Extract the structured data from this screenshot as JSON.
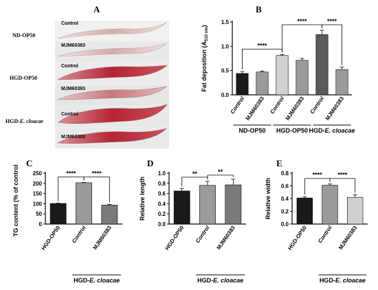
{
  "panels": {
    "a": {
      "letter": "A",
      "groups": [
        {
          "name": "ND-OP50",
          "rows": [
            "Control",
            "MJM60383"
          ]
        },
        {
          "name": "HGD-OP50",
          "rows": [
            "Control",
            "MJM60383"
          ]
        },
        {
          "name": "HGD-E. cloacae",
          "name_prefix": "HGD-",
          "name_species": "E. cloacae",
          "rows": [
            "Control",
            "MJM60383"
          ]
        }
      ],
      "stain_colors": {
        "light": "#e9d3d3",
        "medium": "#c98a8d",
        "dark": "#b8303c"
      }
    },
    "b": {
      "letter": "B"
    },
    "c": {
      "letter": "C"
    },
    "d": {
      "letter": "D"
    },
    "e": {
      "letter": "E"
    }
  },
  "chart_data": [
    {
      "id": "B",
      "type": "bar",
      "ylabel": "Fat deposition (A",
      "ylabel_sub": "510 nm",
      "ylabel_end": ")",
      "ylim": [
        0,
        1.5
      ],
      "yticks": [
        "0.0",
        "0.5",
        "1.0",
        "1.5"
      ],
      "categories": [
        "Control",
        "MJM60383",
        "Control",
        "MJM60383",
        "Control",
        "MJM60383"
      ],
      "italic_categories": [
        "Control"
      ],
      "values": [
        0.44,
        0.47,
        0.81,
        0.71,
        1.24,
        0.52
      ],
      "errors": [
        0.04,
        0.02,
        0.02,
        0.04,
        0.09,
        0.05
      ],
      "colors": [
        "#1a1a1a",
        "#9a9a9a",
        "#d2d2d2",
        "#9a9a9a",
        "#5a5a5a",
        "#9a9a9a"
      ],
      "groups": [
        {
          "label": "ND-OP50",
          "span": [
            0,
            1
          ]
        },
        {
          "label": "HGD-OP50",
          "span": [
            2,
            3
          ]
        },
        {
          "label": "HGD-",
          "label_italic": "E. cloacae",
          "span": [
            4,
            5
          ]
        }
      ],
      "significance": [
        {
          "pair": [
            0,
            2
          ],
          "label": "****"
        },
        {
          "pair": [
            2,
            4
          ],
          "label": "****"
        },
        {
          "pair": [
            4,
            5
          ],
          "label": "****"
        }
      ]
    },
    {
      "id": "C",
      "type": "bar",
      "ylabel": "TG content (% of control )",
      "ylim": [
        0,
        250
      ],
      "yticks": [
        "0",
        "50",
        "100",
        "150",
        "200",
        "250"
      ],
      "categories": [
        "HGD-OP50",
        "Control",
        "MJM60383"
      ],
      "italic_categories": [
        "Control"
      ],
      "values": [
        101,
        203,
        93
      ],
      "errors": [
        1.5,
        1.5,
        4
      ],
      "colors": [
        "#1a1a1a",
        "#9a9a9a",
        "#7a7a7a"
      ],
      "group": {
        "label": "HGD-",
        "label_italic": "E. cloacae",
        "span": [
          1,
          2
        ]
      },
      "significance": [
        {
          "pair": [
            0,
            1
          ],
          "label": "****"
        },
        {
          "pair": [
            1,
            2
          ],
          "label": "****"
        }
      ]
    },
    {
      "id": "D",
      "type": "bar",
      "ylabel": "Relative length",
      "ylim": [
        0,
        1.0
      ],
      "yticks": [
        "0.0",
        "0.2",
        "0.4",
        "0.6",
        "0.8",
        "1.0"
      ],
      "categories": [
        "HGD-OP50",
        "Control",
        "MJM60383"
      ],
      "italic_categories": [
        "Control"
      ],
      "values": [
        0.65,
        0.76,
        0.77
      ],
      "errors": [
        0.05,
        0.08,
        0.11
      ],
      "colors": [
        "#1a1a1a",
        "#9a9a9a",
        "#7a7a7a"
      ],
      "group": {
        "label": "HGD-",
        "label_italic": "E. cloacae",
        "span": [
          1,
          2
        ]
      },
      "significance": [
        {
          "pair": [
            0,
            1
          ],
          "label": "**"
        },
        {
          "pair": [
            1,
            2
          ],
          "label": "**"
        }
      ]
    },
    {
      "id": "E",
      "type": "bar",
      "ylabel": "Relative width",
      "ylim": [
        0,
        0.8
      ],
      "yticks": [
        "0.0",
        "0.2",
        "0.4",
        "0.6",
        "0.8"
      ],
      "categories": [
        "HGD-OP50",
        "Control",
        "MJM60383"
      ],
      "italic_categories": [
        "Control"
      ],
      "values": [
        0.41,
        0.61,
        0.42
      ],
      "errors": [
        0.02,
        0.02,
        0.04
      ],
      "colors": [
        "#1a1a1a",
        "#9a9a9a",
        "#cfcfcf"
      ],
      "group": {
        "label": "HGD-",
        "label_italic": "E. cloacae",
        "span": [
          1,
          2
        ]
      },
      "significance": [
        {
          "pair": [
            0,
            1
          ],
          "label": "****"
        },
        {
          "pair": [
            1,
            2
          ],
          "label": "****"
        }
      ]
    }
  ]
}
